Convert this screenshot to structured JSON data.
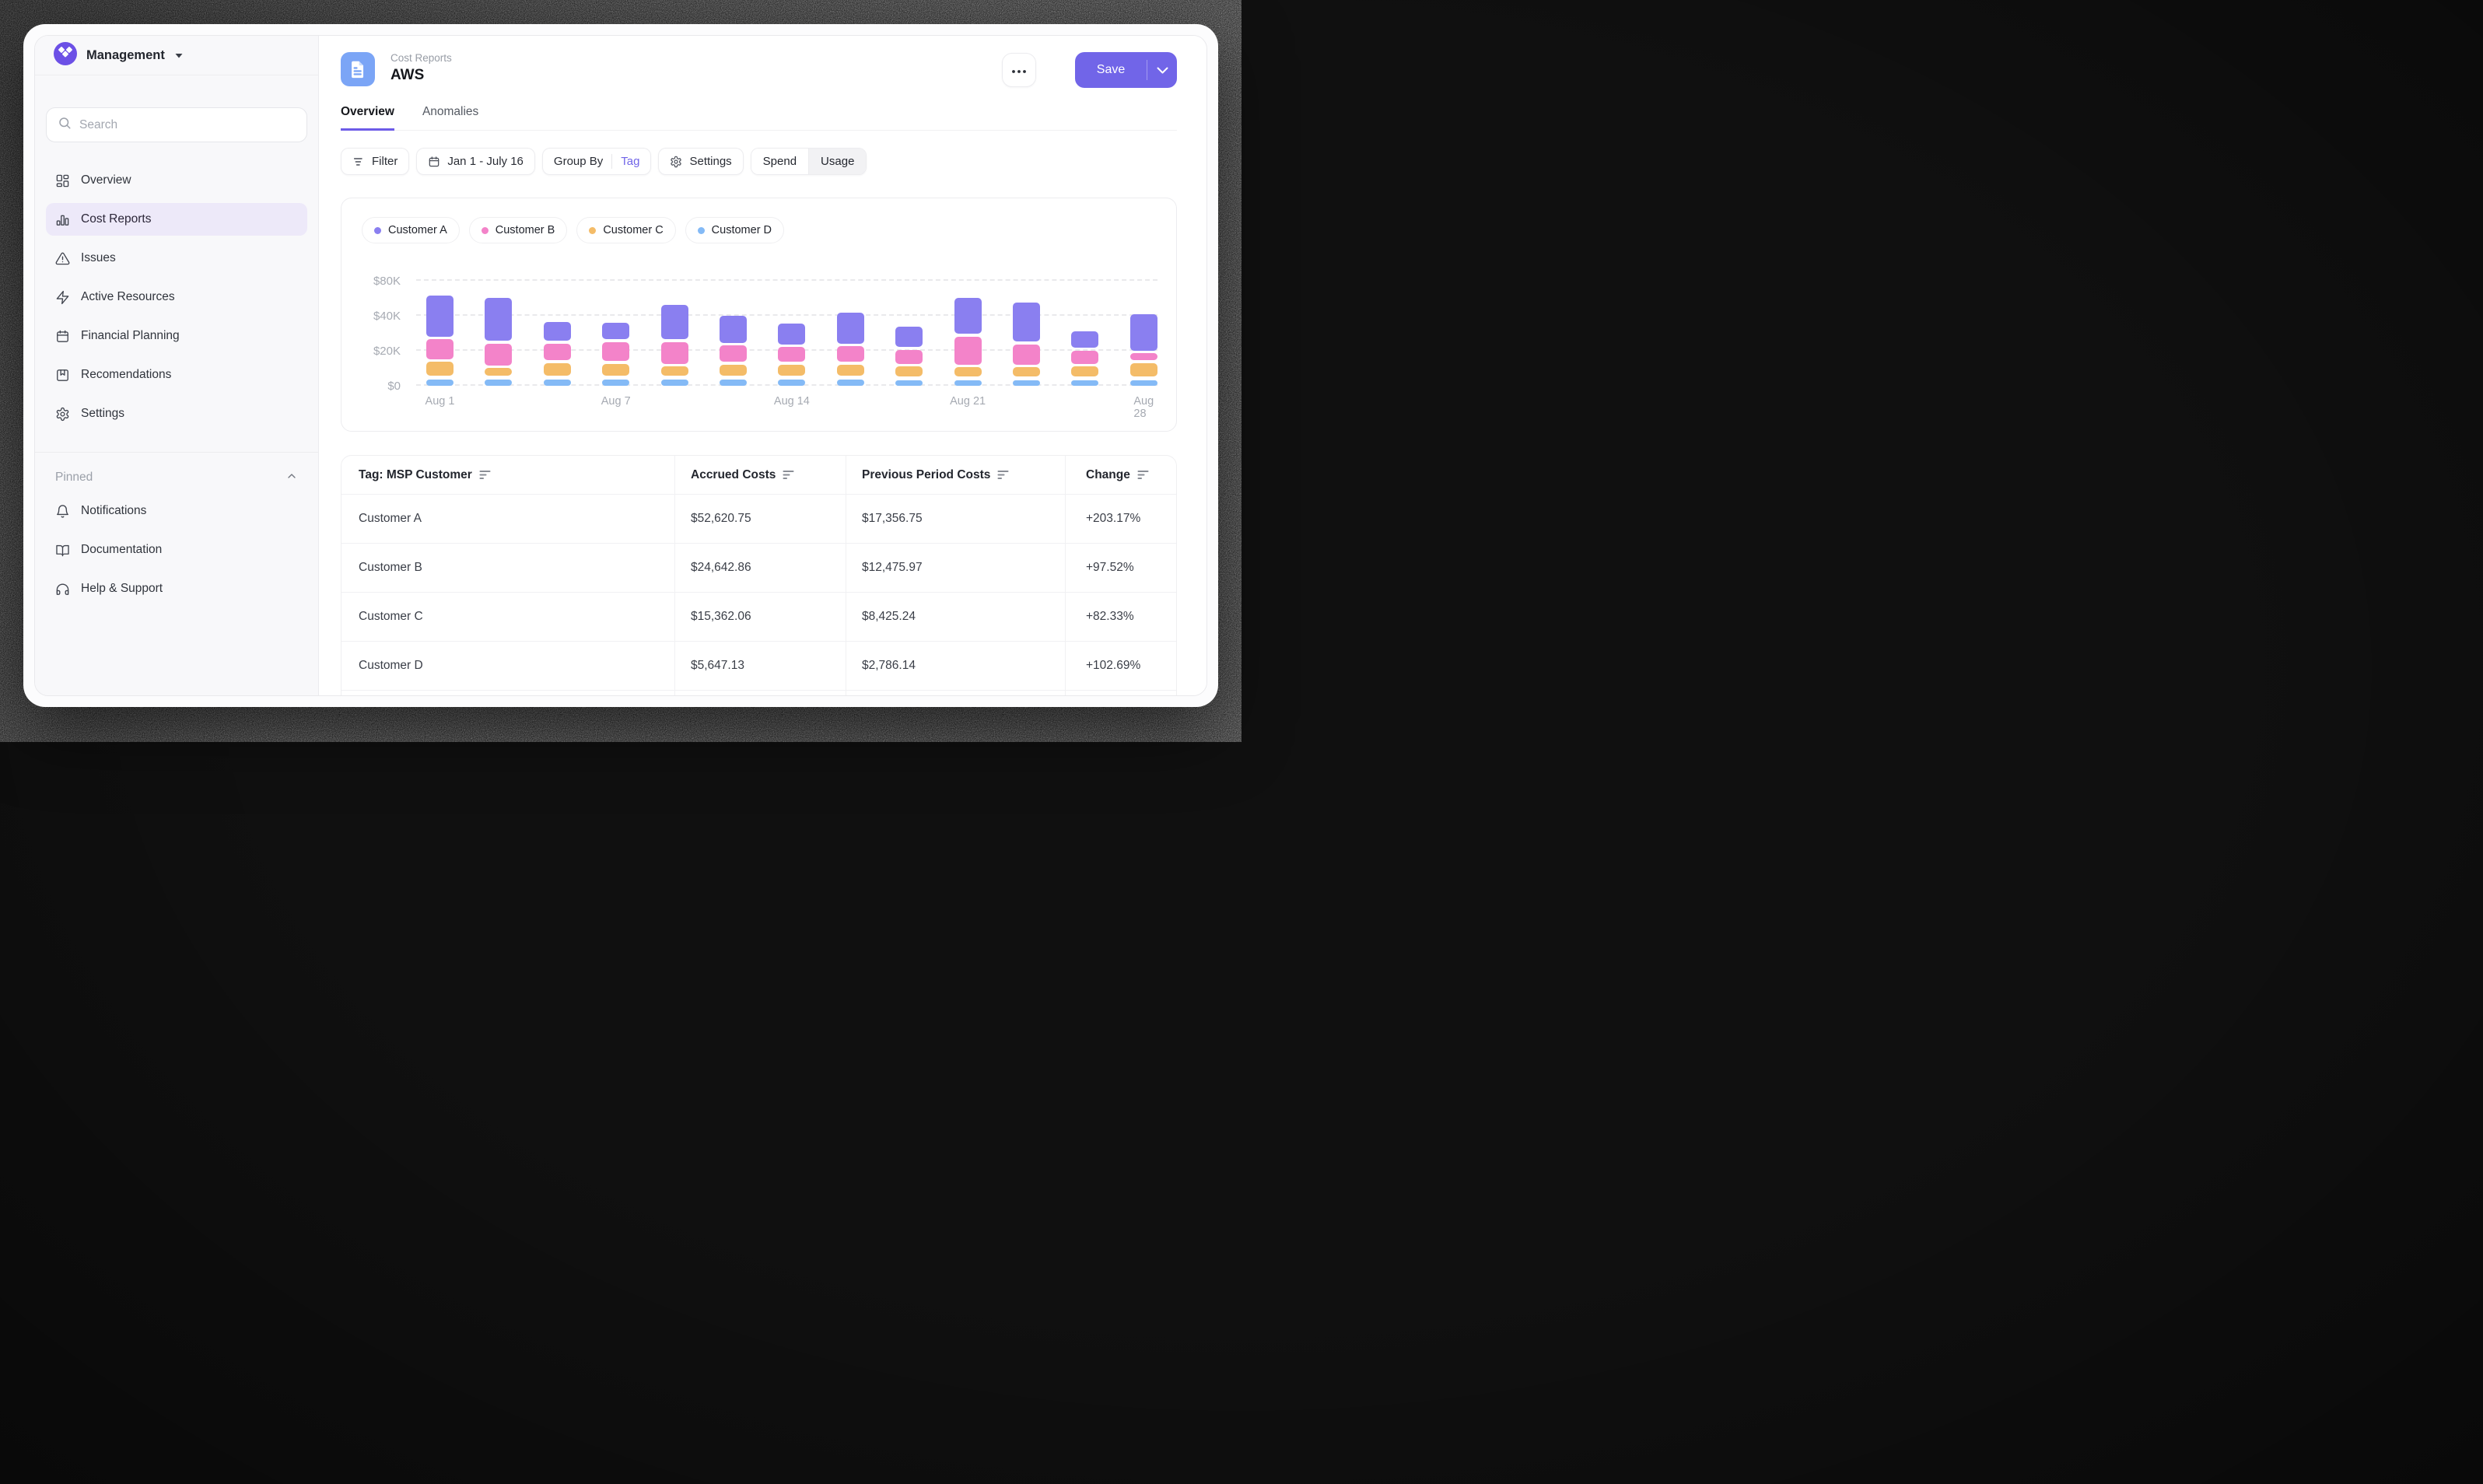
{
  "workspace": {
    "name": "Management"
  },
  "sidebar": {
    "search_placeholder": "Search",
    "items": [
      {
        "icon": "dashboard-icon",
        "label": "Overview",
        "active": false
      },
      {
        "icon": "bar-chart-icon",
        "label": "Cost Reports",
        "active": true
      },
      {
        "icon": "alert-triangle-icon",
        "label": "Issues",
        "active": false
      },
      {
        "icon": "zap-icon",
        "label": "Active Resources",
        "active": false
      },
      {
        "icon": "calendar-icon",
        "label": "Financial Planning",
        "active": false
      },
      {
        "icon": "bookmark-icon",
        "label": "Recomendations",
        "active": false
      },
      {
        "icon": "gear-icon",
        "label": "Settings",
        "active": false
      }
    ],
    "pinned": {
      "label": "Pinned",
      "items": [
        {
          "icon": "bell-icon",
          "label": "Notifications"
        },
        {
          "icon": "book-open-icon",
          "label": "Documentation"
        },
        {
          "icon": "headphones-icon",
          "label": "Help & Support"
        }
      ]
    }
  },
  "header": {
    "breadcrumb": "Cost Reports",
    "title": "AWS",
    "save_label": "Save"
  },
  "tabs": [
    {
      "label": "Overview",
      "active": true
    },
    {
      "label": "Anomalies",
      "active": false
    }
  ],
  "toolbar": {
    "filter_label": "Filter",
    "date_range": "Jan 1 - July 16",
    "group_by_label": "Group By",
    "group_by_value": "Tag",
    "settings_label": "Settings",
    "toggle": {
      "options": [
        "Spend",
        "Usage"
      ],
      "selected": "Spend"
    }
  },
  "chart_data": {
    "type": "bar",
    "stacked": true,
    "title": "",
    "unit": "USD (thousands), values estimated from pixels",
    "y_ticks": [
      "$0",
      "$20K",
      "$40K",
      "$80K"
    ],
    "y_tick_values": [
      0,
      20,
      40,
      80
    ],
    "axis_note": "y axis rendered with even spacing for 0/20K/40K/80K as in mock",
    "x_tick_labels": [
      "Aug 1",
      "Aug 7",
      "Aug 14",
      "Aug 21",
      "Aug 28"
    ],
    "x_tick_bar_index": [
      0,
      3,
      6,
      9,
      12
    ],
    "bar_count": 13,
    "legend_position": "top-left",
    "grid": "dashed horizontal",
    "series": [
      {
        "name": "Customer A",
        "color": "#8A7FF0",
        "values": [
          37,
          37,
          12.5,
          11,
          28,
          17.5,
          13.5,
          22,
          13,
          33,
          32,
          11,
          24
        ]
      },
      {
        "name": "Customer B",
        "color": "#F383C9",
        "values": [
          13,
          14,
          11,
          12.5,
          14,
          11,
          10,
          10.5,
          9.5,
          17.5,
          13,
          9,
          5.5
        ]
      },
      {
        "name": "Customer C",
        "color": "#F4BC68",
        "values": [
          9.5,
          6,
          9,
          8.5,
          7,
          8,
          8,
          8,
          7.5,
          7,
          7,
          7.5,
          9.5
        ]
      },
      {
        "name": "Customer D",
        "color": "#84BAF6",
        "values": [
          5,
          5,
          5,
          5,
          5,
          5,
          5,
          5,
          4.5,
          4.5,
          4.5,
          4.5,
          4.5
        ]
      }
    ]
  },
  "table": {
    "columns": [
      {
        "label": "Tag: MSP Customer",
        "sortable": true
      },
      {
        "label": "Accrued Costs",
        "sortable": true
      },
      {
        "label": "Previous Period Costs",
        "sortable": true
      },
      {
        "label": "Change",
        "sortable": true
      }
    ],
    "rows": [
      [
        "Customer A",
        "$52,620.75",
        "$17,356.75",
        "+203.17%"
      ],
      [
        "Customer B",
        "$24,642.86",
        "$12,475.97",
        "+97.52%"
      ],
      [
        "Customer C",
        "$15,362.06",
        "$8,425.24",
        "+82.33%"
      ],
      [
        "Customer D",
        "$5,647.13",
        "$2,786.14",
        "+102.69%"
      ]
    ],
    "partial_empty_row": true
  },
  "colors": {
    "accent": "#7165E8",
    "active_nav_bg": "#EDE9F9",
    "doc_badge": "#7BA5F6",
    "logo": "#6C50E6",
    "sidebar_bg": "#F8F8FA",
    "muted_text": "#A6AAB2",
    "gridline": "#E9E9EC"
  }
}
